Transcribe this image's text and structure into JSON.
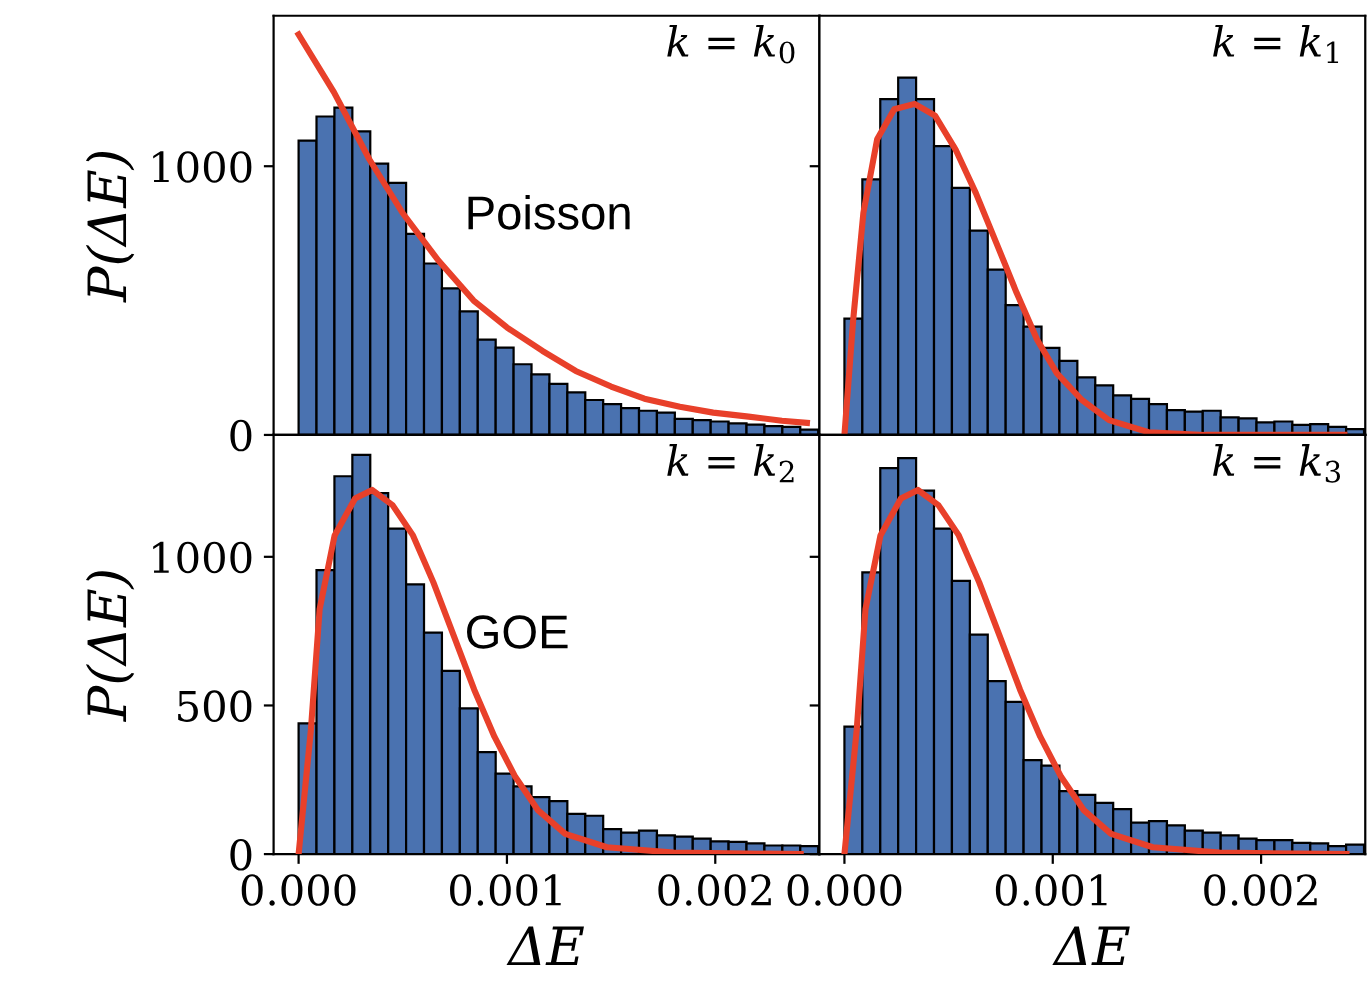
{
  "chart_data": [
    {
      "type": "histogram",
      "ylabel": "P(ΔE)",
      "annotations": [
        "k = k$_{0}$",
        "Poisson"
      ],
      "bins": [
        0,
        8.6e-05,
        0.000172,
        0.000258,
        0.000344,
        0.00043,
        0.000516,
        0.000602,
        0.000688,
        0.000774,
        0.00086,
        0.000946,
        0.001032,
        0.001118,
        0.001204,
        0.00129,
        0.001376,
        0.001462,
        0.001548,
        0.001634,
        0.00172,
        0.001806,
        0.001892,
        0.001978,
        0.002064,
        0.00215,
        0.002236,
        0.002322,
        0.002408,
        0.002494
      ],
      "values": [
        1095,
        1185,
        1218,
        1130,
        1010,
        938,
        748,
        638,
        545,
        460,
        355,
        325,
        263,
        225,
        190,
        158,
        130,
        115,
        100,
        90,
        83,
        60,
        55,
        50,
        43,
        38,
        33,
        30,
        20
      ],
      "color": "#4a72b0",
      "xlim": [
        -0.00012,
        0.0025
      ],
      "ylim": [
        0,
        1560
      ],
      "yticks": [
        0,
        1000
      ],
      "tick_labels": "y",
      "series": [
        {
          "type": "line",
          "color": "#e8402a",
          "x": [
            0,
            0.00017,
            0.00034,
            0.0005,
            0.00067,
            0.00084,
            0.001,
            0.00117,
            0.00133,
            0.0015,
            0.00166,
            0.00183,
            0.00199,
            0.00216,
            0.00232,
            0.00244
          ],
          "values": [
            1490,
            1275,
            1025,
            825,
            650,
            500,
            400,
            313,
            238,
            180,
            135,
            105,
            83,
            68,
            53,
            45
          ]
        }
      ]
    },
    {
      "type": "histogram",
      "annotations": [
        "k = k$_{1}$"
      ],
      "bins": [
        0,
        8.6e-05,
        0.000172,
        0.000258,
        0.000344,
        0.00043,
        0.000516,
        0.000602,
        0.000688,
        0.000774,
        0.00086,
        0.000946,
        0.001032,
        0.001118,
        0.001204,
        0.00129,
        0.001376,
        0.001462,
        0.001548,
        0.001634,
        0.00172,
        0.001806,
        0.001892,
        0.001978,
        0.002064,
        0.00215,
        0.002236,
        0.002322,
        0.002408,
        0.002494
      ],
      "values": [
        433,
        951,
        1250,
        1330,
        1250,
        1075,
        919,
        760,
        615,
        483,
        403,
        324,
        276,
        214,
        184,
        147,
        134,
        115,
        92,
        87,
        90,
        65,
        62,
        47,
        50,
        37,
        40,
        30,
        22
      ],
      "color": "#4a72b0",
      "xlim": [
        -0.00012,
        0.0025
      ],
      "ylim": [
        0,
        1560
      ],
      "yticks": [
        0,
        1000
      ],
      "tick_labels": false,
      "series": [
        {
          "type": "line",
          "color": "#e8402a",
          "x": [
            0,
            4.2e-05,
            9.1e-05,
            0.000157,
            0.000239,
            0.000337,
            0.000435,
            0.000533,
            0.000631,
            0.000729,
            0.000827,
            0.000925,
            0.00102,
            0.00114,
            0.00127,
            0.00146,
            0.00173,
            0.0024
          ],
          "values": [
            0,
            428,
            827,
            1100,
            1212,
            1232,
            1188,
            1063,
            900,
            715,
            528,
            354,
            229,
            130,
            55,
            10,
            0,
            0
          ]
        }
      ]
    },
    {
      "type": "histogram",
      "ylabel": "P(ΔE)",
      "xlabel": "ΔE",
      "annotations": [
        "k = k$_{2}$",
        "GOE"
      ],
      "bins": [
        0,
        8.6e-05,
        0.000172,
        0.000258,
        0.000344,
        0.00043,
        0.000516,
        0.000602,
        0.000688,
        0.000774,
        0.00086,
        0.000946,
        0.001032,
        0.001118,
        0.001204,
        0.00129,
        0.001376,
        0.001462,
        0.001548,
        0.001634,
        0.00172,
        0.001806,
        0.001892,
        0.001978,
        0.002064,
        0.00215,
        0.002236,
        0.002322,
        0.002408,
        0.002494
      ],
      "values": [
        440,
        955,
        1271,
        1343,
        1214,
        1095,
        907,
        745,
        616,
        490,
        343,
        271,
        228,
        192,
        178,
        135,
        129,
        84,
        72,
        79,
        63,
        59,
        52,
        43,
        41,
        36,
        29,
        29,
        27
      ],
      "color": "#4a72b0",
      "xlim": [
        -0.00012,
        0.0025
      ],
      "ylim": [
        0,
        1410
      ],
      "yticks": [
        0,
        500,
        1000
      ],
      "xticks": [
        {
          "value": 0,
          "label": "0.000"
        },
        {
          "value": 0.001,
          "label": "0.001"
        },
        {
          "value": 0.002,
          "label": "0.002"
        }
      ],
      "series": [
        {
          "type": "line",
          "color": "#e8402a",
          "x": [
            0,
            5.9e-05,
            0.000101,
            0.000173,
            0.000271,
            0.000353,
            0.000451,
            0.000549,
            0.000647,
            0.000745,
            0.000843,
            0.00094,
            0.00104,
            0.00115,
            0.00128,
            0.00148,
            0.0018,
            0.00241
          ],
          "values": [
            0,
            418,
            824,
            1072,
            1196,
            1225,
            1174,
            1072,
            914,
            734,
            553,
            395,
            260,
            147,
            68,
            23,
            5,
            0
          ]
        }
      ]
    },
    {
      "type": "histogram",
      "xlabel": "ΔE",
      "annotations": [
        "k = k$_{3}$"
      ],
      "bins": [
        0,
        8.6e-05,
        0.000172,
        0.000258,
        0.000344,
        0.00043,
        0.000516,
        0.000602,
        0.000688,
        0.000774,
        0.00086,
        0.000946,
        0.001032,
        0.001118,
        0.001204,
        0.00129,
        0.001376,
        0.001462,
        0.001548,
        0.001634,
        0.00172,
        0.001806,
        0.001892,
        0.001978,
        0.002064,
        0.00215,
        0.002236,
        0.002322,
        0.002408,
        0.002494
      ],
      "values": [
        429,
        948,
        1298,
        1332,
        1223,
        1095,
        919,
        738,
        582,
        512,
        316,
        298,
        212,
        199,
        172,
        151,
        106,
        111,
        97,
        79,
        72,
        63,
        52,
        47,
        47,
        38,
        36,
        27,
        32
      ],
      "color": "#4a72b0",
      "xlim": [
        -0.00012,
        0.0025
      ],
      "ylim": [
        0,
        1410
      ],
      "yticks": [
        0,
        500,
        1000
      ],
      "xticks": [
        {
          "value": 0,
          "label": "0.000"
        },
        {
          "value": 0.001,
          "label": "0.001"
        },
        {
          "value": 0.002,
          "label": "0.002"
        }
      ],
      "tick_labels": "x",
      "series": [
        {
          "type": "line",
          "color": "#e8402a",
          "x": [
            0,
            5.9e-05,
            0.000101,
            0.000173,
            0.000271,
            0.000353,
            0.000451,
            0.000549,
            0.000647,
            0.000745,
            0.000843,
            0.00094,
            0.00104,
            0.00115,
            0.00128,
            0.00148,
            0.0018,
            0.00241
          ],
          "values": [
            0,
            418,
            824,
            1072,
            1196,
            1225,
            1174,
            1072,
            914,
            734,
            553,
            395,
            260,
            147,
            68,
            23,
            5,
            0
          ]
        }
      ]
    }
  ]
}
